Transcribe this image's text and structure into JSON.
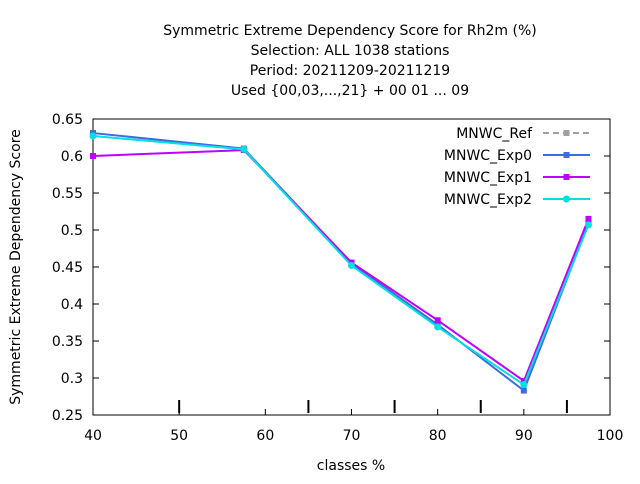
{
  "chart_data": {
    "type": "line",
    "title_lines": [
      "Symmetric Extreme Dependency Score  for Rh2m (%)",
      "Selection: ALL    1038 stations",
      "Period: 20211209-20211219",
      "Used {00,03,...,21} + 00 01 ... 09"
    ],
    "xlabel": "classes %",
    "ylabel": "Symmetric Extreme Dependency Score",
    "xlim": [
      40,
      100
    ],
    "ylim": [
      0.25,
      0.65
    ],
    "x_ticks": [
      40,
      50,
      60,
      70,
      80,
      90,
      100
    ],
    "y_ticks": [
      0.25,
      0.3,
      0.35,
      0.4,
      0.45,
      0.5,
      0.55,
      0.6,
      0.65
    ],
    "y_tick_labels": [
      "0.25",
      "0.3",
      "0.35",
      "0.4",
      "0.45",
      "0.5",
      "0.55",
      "0.6",
      "0.65"
    ],
    "x_minor_ticks": [
      50,
      65,
      75,
      85,
      95
    ],
    "grid": false,
    "legend_position": "top-right",
    "series": [
      {
        "name": "MNWC_Ref",
        "color": "#a0a0a0",
        "dashed": true,
        "x": [],
        "y": []
      },
      {
        "name": "MNWC_Exp0",
        "color": "#4169e1",
        "dashed": false,
        "x": [
          40,
          57.5,
          70,
          80,
          90,
          97.5
        ],
        "y": [
          0.631,
          0.61,
          0.455,
          0.372,
          0.283,
          0.509
        ]
      },
      {
        "name": "MNWC_Exp1",
        "color": "#c000ff",
        "dashed": false,
        "x": [
          40,
          57.5,
          70,
          80,
          90,
          97.5
        ],
        "y": [
          0.6,
          0.608,
          0.456,
          0.378,
          0.296,
          0.515
        ]
      },
      {
        "name": "MNWC_Exp2",
        "color": "#00e0e0",
        "dashed": false,
        "x": [
          40,
          57.5,
          70,
          80,
          90,
          97.5
        ],
        "y": [
          0.627,
          0.609,
          0.452,
          0.369,
          0.291,
          0.507
        ]
      }
    ]
  }
}
